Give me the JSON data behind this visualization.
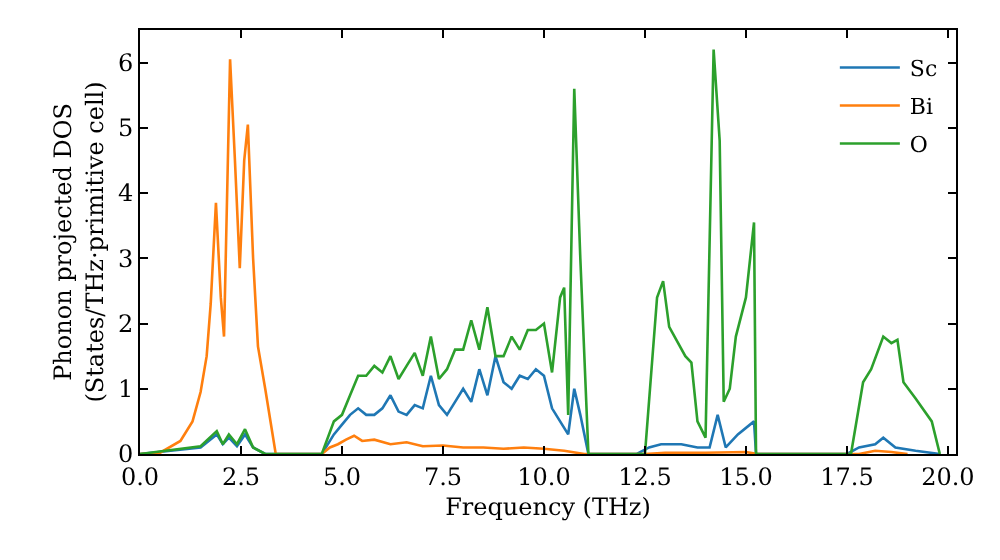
{
  "chart_data": {
    "type": "line",
    "xlabel": "Frequency (THz)",
    "ylabel": "Phonon projected DOS\n(States/THz·primitive cell)",
    "xlim": [
      0,
      20.2
    ],
    "ylim": [
      0,
      6.5
    ],
    "xticks": [
      {
        "value": 0,
        "label": "0.0"
      },
      {
        "value": 2.5,
        "label": "2.5"
      },
      {
        "value": 5,
        "label": "5.0"
      },
      {
        "value": 7.5,
        "label": "7.5"
      },
      {
        "value": 10,
        "label": "10.0"
      },
      {
        "value": 12.5,
        "label": "12.5"
      },
      {
        "value": 15,
        "label": "15.0"
      },
      {
        "value": 17.5,
        "label": "17.5"
      },
      {
        "value": 20,
        "label": "20.0"
      }
    ],
    "yticks": [
      0,
      1,
      2,
      3,
      4,
      5,
      6
    ],
    "legend": "top right",
    "marker": "none",
    "line_style": "solid",
    "series": [
      {
        "name": "Sc",
        "color": "#1f77b4",
        "x": [
          0,
          1.5,
          1.9,
          2.05,
          2.2,
          2.4,
          2.6,
          2.8,
          3.1,
          4.5,
          4.8,
          5.0,
          5.2,
          5.4,
          5.6,
          5.8,
          6.0,
          6.2,
          6.4,
          6.6,
          6.8,
          7.0,
          7.2,
          7.4,
          7.6,
          7.8,
          8.0,
          8.2,
          8.4,
          8.6,
          8.8,
          9.0,
          9.2,
          9.4,
          9.6,
          9.8,
          10.0,
          10.2,
          10.4,
          10.6,
          10.75,
          10.9,
          11.1,
          12.3,
          12.6,
          12.9,
          13.4,
          13.8,
          14.1,
          14.3,
          14.5,
          14.8,
          15.2,
          15.25,
          17.5,
          17.8,
          18.2,
          18.4,
          18.7,
          19.2,
          19.8
        ],
        "values": [
          0,
          0.1,
          0.3,
          0.15,
          0.25,
          0.12,
          0.3,
          0.1,
          0,
          0,
          0.3,
          0.45,
          0.6,
          0.7,
          0.6,
          0.6,
          0.7,
          0.9,
          0.65,
          0.6,
          0.75,
          0.7,
          1.2,
          0.75,
          0.6,
          0.8,
          1.0,
          0.8,
          1.3,
          0.9,
          1.5,
          1.1,
          1.0,
          1.2,
          1.15,
          1.3,
          1.2,
          0.7,
          0.5,
          0.3,
          1.0,
          0.6,
          0,
          0,
          0.1,
          0.15,
          0.15,
          0.1,
          0.1,
          0.6,
          0.1,
          0.3,
          0.5,
          0,
          0,
          0.1,
          0.15,
          0.25,
          0.1,
          0.05,
          0
        ]
      },
      {
        "name": "Bi",
        "color": "#ff7f0e",
        "x": [
          0,
          0.5,
          1.0,
          1.3,
          1.5,
          1.65,
          1.75,
          1.88,
          2.0,
          2.08,
          2.23,
          2.35,
          2.47,
          2.58,
          2.67,
          2.8,
          2.92,
          3.1,
          3.36,
          4.5,
          4.7,
          4.9,
          5.1,
          5.3,
          5.5,
          5.8,
          6.2,
          6.6,
          7.0,
          7.5,
          8.0,
          8.5,
          9.0,
          9.5,
          10.0,
          10.5,
          11.0,
          12.5,
          13.0,
          14.0,
          15.0,
          15.3,
          17.8,
          18.2,
          18.6,
          19.0
        ],
        "values": [
          0,
          0.02,
          0.2,
          0.5,
          0.95,
          1.5,
          2.3,
          3.85,
          2.4,
          1.8,
          6.05,
          4.5,
          2.85,
          4.5,
          5.05,
          3.0,
          1.65,
          1.0,
          0,
          0,
          0.1,
          0.15,
          0.22,
          0.28,
          0.2,
          0.22,
          0.15,
          0.18,
          0.12,
          0.13,
          0.1,
          0.1,
          0.08,
          0.1,
          0.08,
          0.05,
          0,
          0,
          0.02,
          0.02,
          0.03,
          0,
          0,
          0.05,
          0.03,
          0
        ]
      },
      {
        "name": "O",
        "color": "#2ca02c",
        "x": [
          0,
          1.5,
          1.9,
          2.05,
          2.2,
          2.4,
          2.6,
          2.8,
          3.1,
          4.5,
          4.8,
          5.0,
          5.2,
          5.4,
          5.6,
          5.8,
          6.0,
          6.2,
          6.4,
          6.6,
          6.8,
          7.0,
          7.2,
          7.4,
          7.6,
          7.8,
          8.0,
          8.2,
          8.4,
          8.6,
          8.8,
          9.0,
          9.2,
          9.4,
          9.6,
          9.8,
          10.0,
          10.2,
          10.4,
          10.5,
          10.6,
          10.75,
          10.9,
          11.1,
          12.5,
          12.8,
          12.95,
          13.1,
          13.5,
          13.65,
          13.8,
          14.0,
          14.2,
          14.35,
          14.45,
          14.6,
          14.75,
          15.0,
          15.2,
          15.25,
          17.6,
          17.9,
          18.1,
          18.4,
          18.6,
          18.75,
          18.9,
          19.2,
          19.6,
          19.8
        ],
        "values": [
          0,
          0.12,
          0.35,
          0.15,
          0.3,
          0.15,
          0.38,
          0.1,
          0,
          0,
          0.5,
          0.6,
          0.9,
          1.2,
          1.2,
          1.35,
          1.25,
          1.5,
          1.15,
          1.35,
          1.55,
          1.2,
          1.8,
          1.15,
          1.3,
          1.6,
          1.6,
          2.05,
          1.6,
          2.25,
          1.5,
          1.5,
          1.8,
          1.6,
          1.9,
          1.9,
          2.0,
          1.25,
          2.4,
          2.55,
          0.6,
          5.6,
          3.0,
          0,
          0,
          2.4,
          2.65,
          1.95,
          1.5,
          1.4,
          0.5,
          0.25,
          6.2,
          4.8,
          0.8,
          1.0,
          1.8,
          2.4,
          3.55,
          0,
          0,
          1.1,
          1.3,
          1.8,
          1.7,
          1.75,
          1.1,
          0.85,
          0.5,
          0
        ]
      }
    ]
  }
}
